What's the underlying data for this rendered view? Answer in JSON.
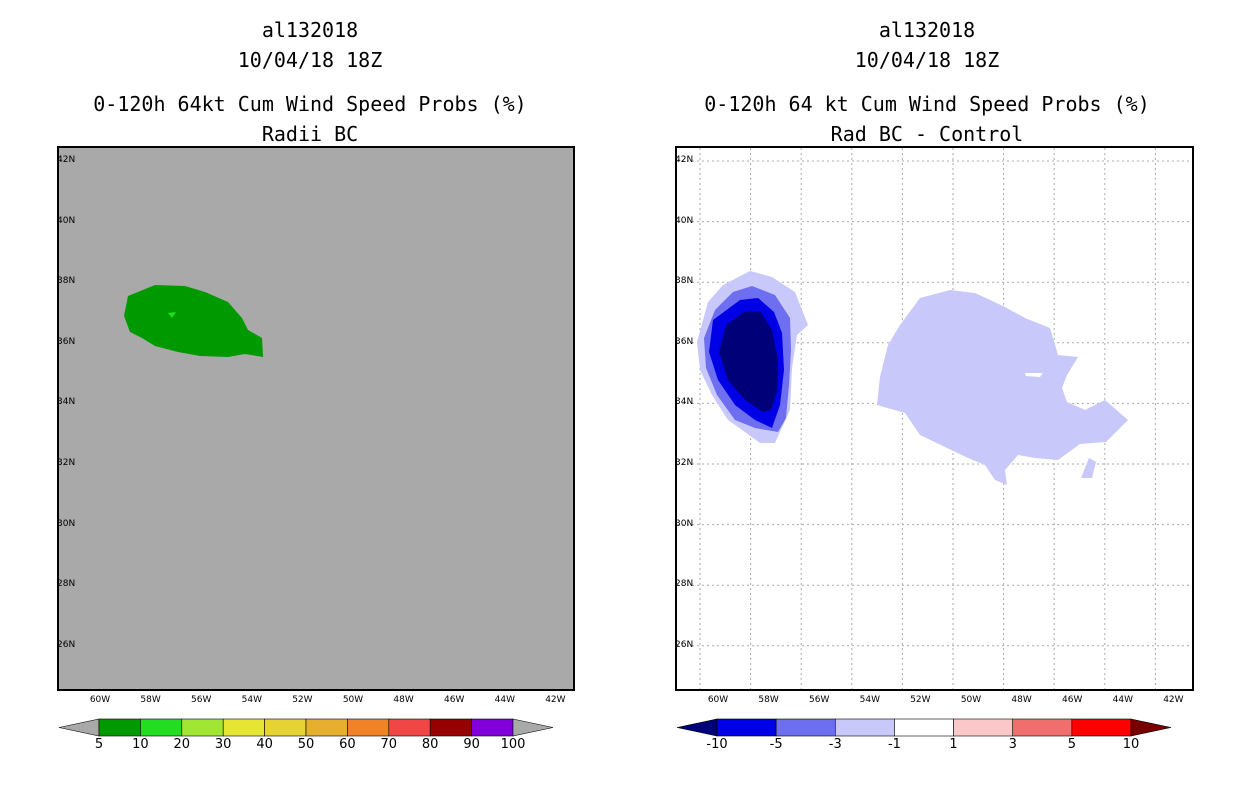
{
  "chart_data": [
    {
      "type": "contour-map",
      "title_lines": [
        "al132018",
        "10/04/18 18Z",
        "0-120h 64kt Cum Wind Speed Probs (%)",
        "Radii BC"
      ],
      "background_color": "#a9a9a9",
      "x_ticks": [
        "60W",
        "58W",
        "56W",
        "54W",
        "52W",
        "50W",
        "48W",
        "46W",
        "44W",
        "42W"
      ],
      "y_ticks": [
        "42N",
        "40N",
        "38N",
        "36N",
        "34N",
        "32N",
        "30N",
        "28N",
        "26N"
      ],
      "grid": false,
      "colorbar": {
        "labels": [
          "5",
          "10",
          "20",
          "30",
          "40",
          "50",
          "60",
          "70",
          "80",
          "90",
          "100"
        ],
        "colors": [
          "#009900",
          "#22dd22",
          "#a0e632",
          "#e6e632",
          "#e6d232",
          "#e6af2d",
          "#f08228",
          "#f04646",
          "#960000",
          "#8200dc"
        ],
        "arrow_left_color": "#a9a9a9",
        "arrow_right_color": "#a9a9a9"
      },
      "features": [
        {
          "name": "probability-5-10-region",
          "level": "5-10",
          "color": "#009900"
        }
      ]
    },
    {
      "type": "contour-map",
      "title_lines": [
        "al132018",
        "10/04/18 18Z",
        "0-120h 64 kt Cum Wind Speed Probs (%)",
        "Rad BC - Control"
      ],
      "background_color": "#ffffff",
      "x_ticks": [
        "60W",
        "58W",
        "56W",
        "54W",
        "52W",
        "50W",
        "48W",
        "46W",
        "44W",
        "42W"
      ],
      "y_ticks": [
        "42N",
        "40N",
        "38N",
        "36N",
        "34N",
        "32N",
        "30N",
        "28N",
        "26N"
      ],
      "grid": true,
      "colorbar": {
        "labels": [
          "-10",
          "-5",
          "-3",
          "-1",
          "1",
          "3",
          "5",
          "10"
        ],
        "colors": [
          "#0000e6",
          "#6e6ef0",
          "#c8c8fa",
          "#ffffff",
          "#fac8c8",
          "#f06e6e",
          "#ff0000"
        ],
        "arrow_left_color": "#000078",
        "arrow_right_color": "#780000"
      },
      "features": [
        {
          "name": "diff-minus3-minus1-west",
          "level": "-3 to -1",
          "color": "#c8c8fa"
        },
        {
          "name": "diff-minus5-minus3",
          "level": "-5 to -3",
          "color": "#6e6ef0"
        },
        {
          "name": "diff-minus10-minus5",
          "level": "-10 to -5",
          "color": "#0000e6"
        },
        {
          "name": "diff-below-minus10",
          "level": "< -10",
          "color": "#000078"
        },
        {
          "name": "diff-minus3-minus1-east",
          "level": "-3 to -1",
          "color": "#c8c8fa"
        }
      ]
    }
  ]
}
